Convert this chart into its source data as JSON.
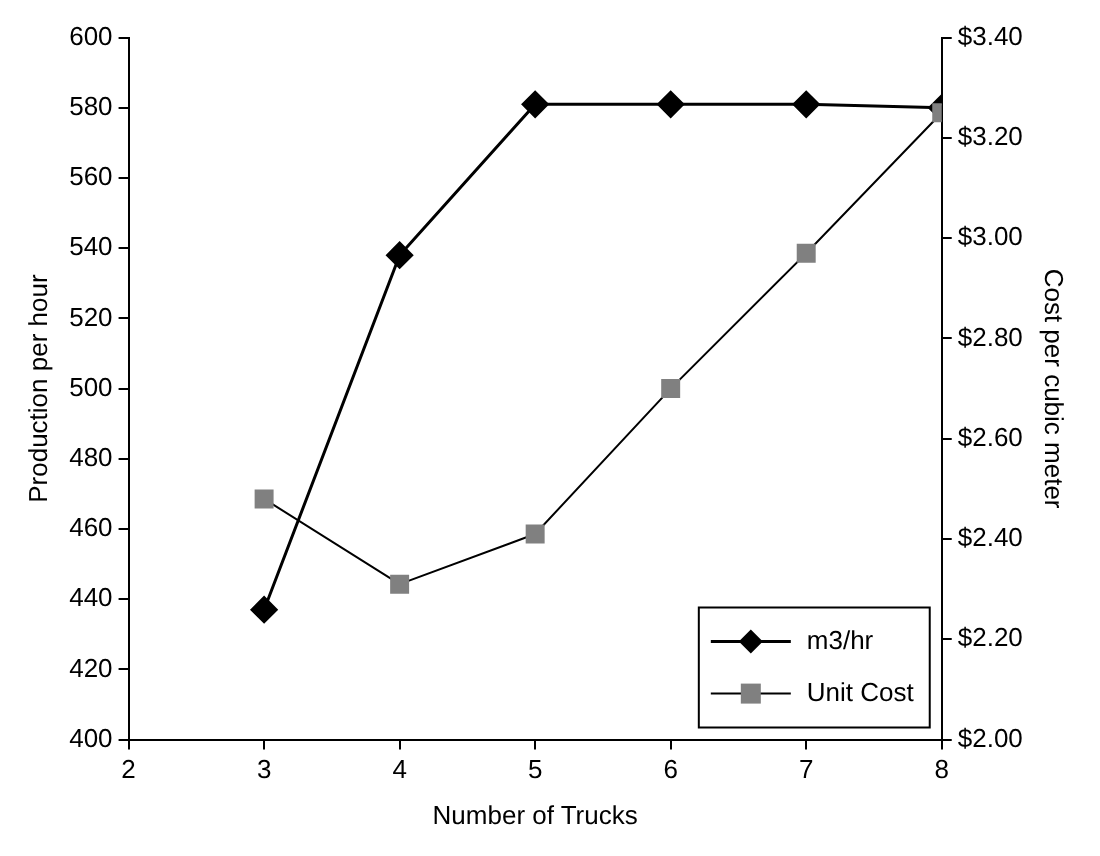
{
  "chart_data": {
    "type": "line",
    "xlabel": "Number of Trucks",
    "ylabel": "Production per hour",
    "y2label": "Cost per cubic meter",
    "xlim": [
      2,
      8
    ],
    "xticks": [
      2,
      3,
      4,
      5,
      6,
      7,
      8
    ],
    "ylim": [
      400,
      600
    ],
    "yticks": [
      400,
      420,
      440,
      460,
      480,
      500,
      520,
      540,
      560,
      580,
      600
    ],
    "y2lim": [
      2,
      3.4
    ],
    "y2ticks": [
      {
        "value": 2,
        "label": "$2.00"
      },
      {
        "value": 2.2,
        "label": "$2.20"
      },
      {
        "value": 2.4,
        "label": "$2.40"
      },
      {
        "value": 2.6,
        "label": "$2.60"
      },
      {
        "value": 2.8,
        "label": "$2.80"
      },
      {
        "value": 3,
        "label": "$3.00"
      },
      {
        "value": 3.2,
        "label": "$3.20"
      },
      {
        "value": 3.4,
        "label": "$3.40"
      }
    ],
    "x": [
      3,
      4,
      5,
      6,
      7,
      8
    ],
    "series": [
      {
        "name": "m3/hr",
        "color": "#000000",
        "marker": "diamond",
        "values": [
          437,
          538,
          581,
          581,
          581,
          580
        ]
      },
      {
        "name": "Unit Cost",
        "color": "#808080",
        "marker": "square",
        "axis": "y2",
        "values": [
          2.48,
          2.31,
          2.41,
          2.7,
          2.97,
          3.25
        ]
      }
    ],
    "legend": "bottom right",
    "grid": false
  }
}
